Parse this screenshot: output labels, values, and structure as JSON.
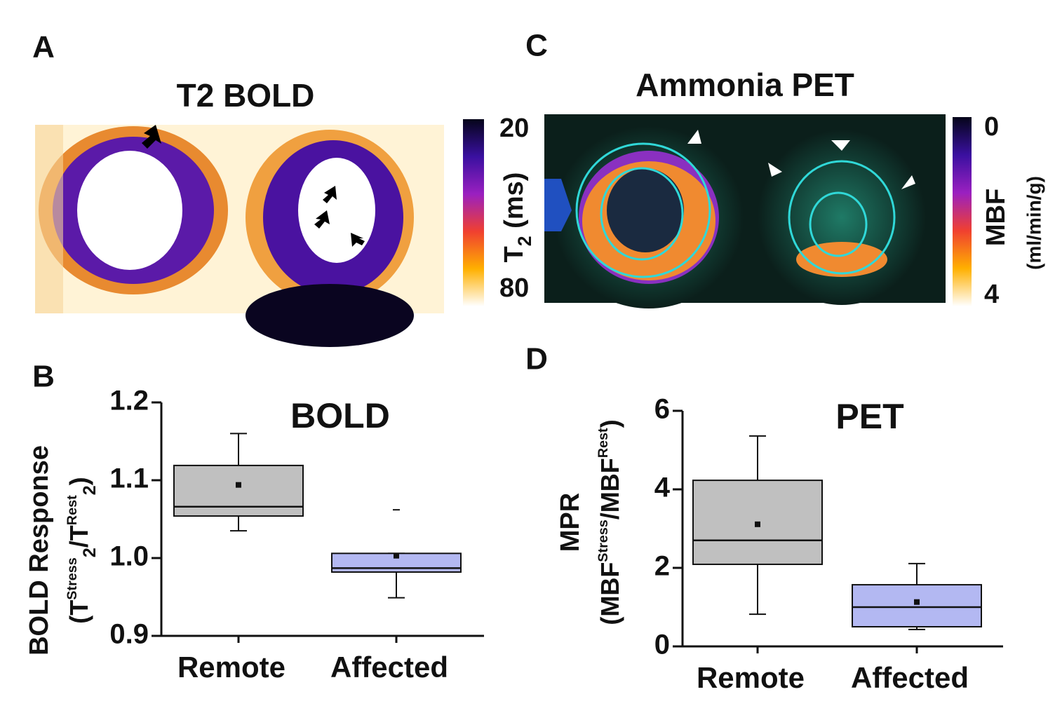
{
  "panel_labels": [
    "A",
    "B",
    "C",
    "D"
  ],
  "images": [
    {
      "title": "T2 BOLD",
      "colorbar": {
        "ticks": [
          20,
          80
        ],
        "label": [
          {
            "text": "T"
          },
          {
            "text": "2",
            "sub": true
          },
          {
            "text": " (ms)"
          }
        ]
      }
    },
    {
      "title": "Ammonia PET",
      "colorbar": {
        "ticks": [
          0,
          4
        ],
        "label": [
          {
            "text": "MBF"
          }
        ],
        "units": "(ml/min/g)"
      }
    }
  ],
  "chart_data": [
    {
      "type": "box",
      "title": "BOLD",
      "ylabel": "BOLD Response",
      "ylabel_parts": [
        {
          "text": "(T"
        },
        {
          "text": "Stress",
          "sup": true
        },
        {
          "text": "2",
          "sub": true
        },
        {
          "text": "/T"
        },
        {
          "text": "Rest",
          "sup": true
        },
        {
          "text": "2",
          "sub": true
        },
        {
          "text": ")"
        }
      ],
      "categories": [
        "Remote",
        "Affected"
      ],
      "colors": [
        "#c0c0c0",
        "#b3b8f2"
      ],
      "stats": {
        "min": [
          1.035,
          0.949
        ],
        "q1": [
          1.054,
          0.982
        ],
        "median": [
          1.066,
          0.987
        ],
        "q3": [
          1.119,
          1.006
        ],
        "max": [
          1.16,
          1.006
        ],
        "mean": [
          1.094,
          1.003
        ]
      },
      "outliers": [
        [],
        [
          1.062
        ]
      ],
      "ylim": [
        0.9,
        1.2
      ],
      "yticks": [
        0.9,
        {
          "value": 1,
          "label": "1.0"
        },
        1.1,
        1.2
      ]
    },
    {
      "type": "box",
      "title": "PET",
      "ylabel": "MPR",
      "ylabel_parts": [
        {
          "text": "(MBF"
        },
        {
          "text": "Stress",
          "sup": true
        },
        {
          "text": "/MBF"
        },
        {
          "text": "Rest",
          "sup": true
        },
        {
          "text": ")"
        }
      ],
      "categories": [
        "Remote",
        "Affected"
      ],
      "colors": [
        "#c0c0c0",
        "#b3b8f2"
      ],
      "stats": {
        "min": [
          0.82,
          0.43
        ],
        "q1": [
          2.09,
          0.5
        ],
        "median": [
          2.7,
          1.0
        ],
        "q3": [
          4.23,
          1.57
        ],
        "max": [
          5.36,
          2.11
        ],
        "mean": [
          3.11,
          1.13
        ]
      },
      "outliers": [
        [],
        []
      ],
      "ylim": [
        0,
        6
      ],
      "yticks": [
        0,
        2,
        4,
        6
      ]
    }
  ]
}
